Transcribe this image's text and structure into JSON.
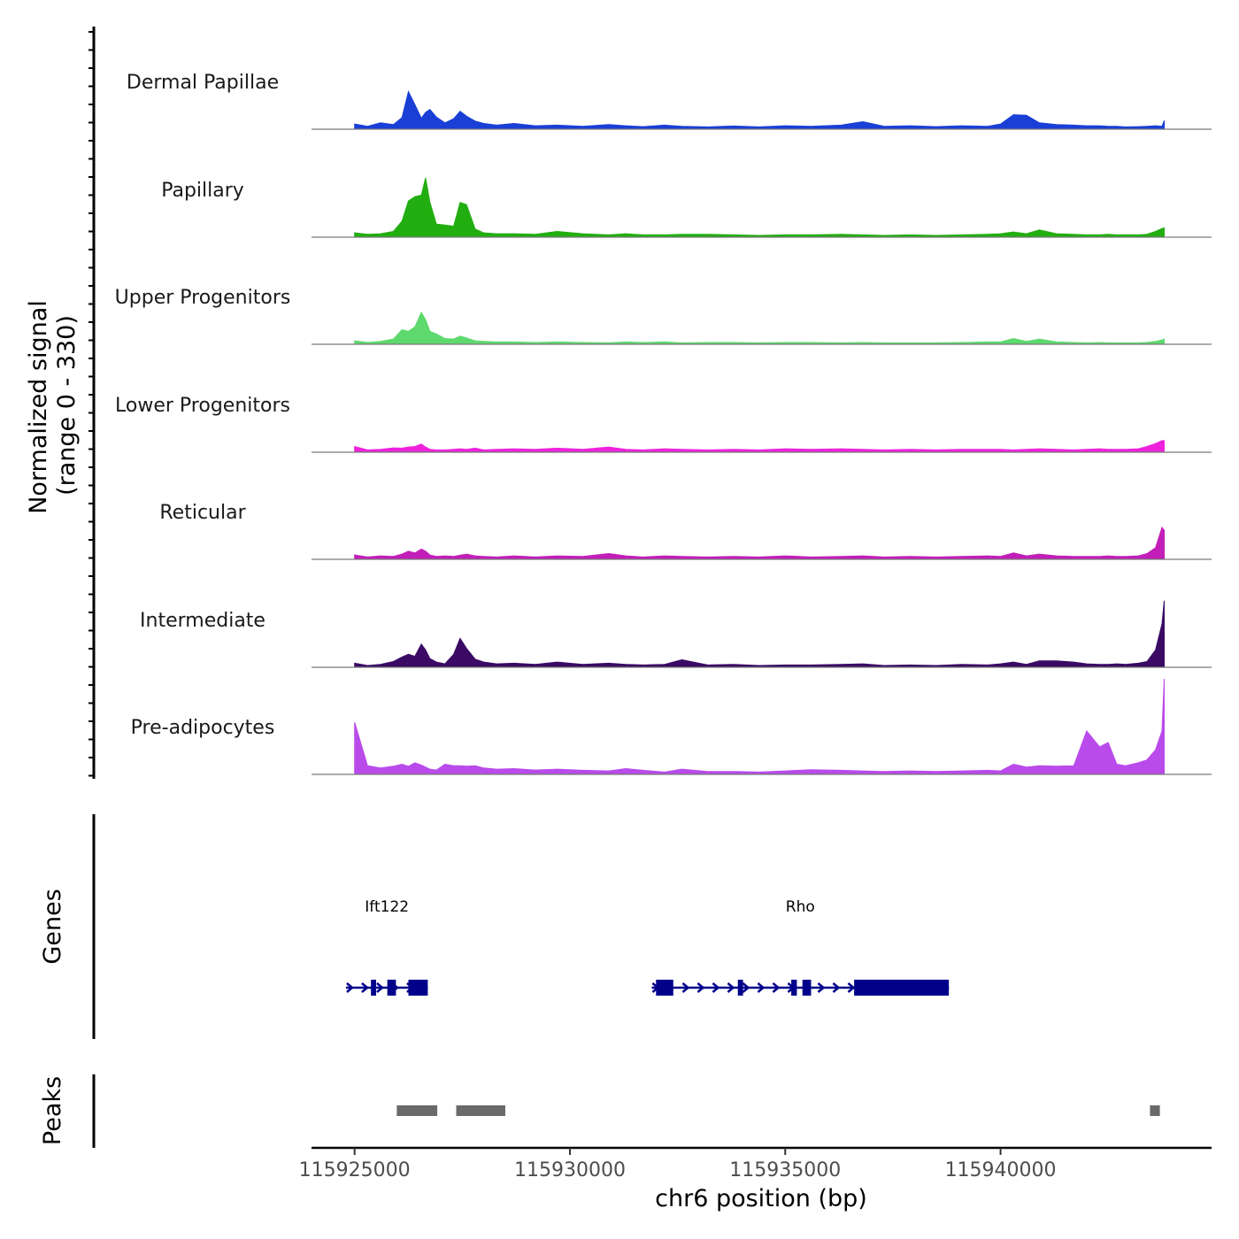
{
  "chart_data": {
    "type": "area",
    "title": "",
    "ylabel": "Normalized signal",
    "ylabel_range": "(range 0 - 330)",
    "ylim": [
      0,
      330
    ],
    "xlabel": "chr6 position (bp)",
    "xlim": [
      115924000,
      115944900
    ],
    "x_ticks": [
      115925000,
      115930000,
      115935000,
      115940000
    ],
    "x_tick_labels": [
      "115925000",
      "115930000",
      "115935000",
      "115940000"
    ],
    "positions": [
      115925000,
      115925300,
      115925600,
      115925900,
      115926100,
      115926250,
      115926400,
      115926550,
      115926650,
      115926750,
      115926900,
      115927100,
      115927300,
      115927450,
      115927600,
      115927800,
      115928000,
      115928300,
      115928700,
      115929200,
      115929700,
      115930300,
      115930900,
      115931300,
      115931700,
      115932200,
      115932600,
      115933200,
      115933800,
      115934400,
      115935000,
      115935600,
      115936300,
      115936800,
      115937300,
      115937900,
      115938500,
      115939100,
      115939700,
      115940000,
      115940300,
      115940600,
      115940900,
      115941300,
      115941700,
      115942000,
      115942300,
      115942500,
      115942700,
      115942900,
      115943200,
      115943400,
      115943600,
      115943750,
      115943800
    ],
    "series": [
      {
        "name": "Dermal Papillae",
        "color": "#1a3fd6",
        "values": [
          18,
          10,
          22,
          16,
          40,
          130,
          85,
          38,
          58,
          68,
          42,
          22,
          36,
          62,
          45,
          28,
          20,
          14,
          20,
          12,
          14,
          10,
          16,
          12,
          9,
          14,
          10,
          8,
          11,
          8,
          12,
          10,
          14,
          26,
          10,
          12,
          9,
          12,
          10,
          18,
          50,
          48,
          22,
          16,
          14,
          12,
          12,
          10,
          10,
          8,
          9,
          10,
          12,
          10,
          30
        ]
      },
      {
        "name": "Papillary",
        "color": "#22ae10",
        "values": [
          15,
          10,
          12,
          20,
          55,
          125,
          140,
          145,
          205,
          120,
          45,
          42,
          38,
          120,
          112,
          28,
          15,
          12,
          12,
          10,
          20,
          12,
          8,
          12,
          8,
          8,
          10,
          10,
          8,
          6,
          8,
          8,
          10,
          8,
          6,
          8,
          6,
          8,
          10,
          12,
          18,
          12,
          25,
          12,
          10,
          8,
          8,
          10,
          8,
          8,
          8,
          10,
          20,
          30,
          32
        ]
      },
      {
        "name": "Upper Progenitors",
        "color": "#5ed96e",
        "values": [
          12,
          6,
          10,
          18,
          50,
          45,
          60,
          110,
          85,
          45,
          35,
          20,
          18,
          28,
          22,
          12,
          10,
          8,
          8,
          6,
          8,
          6,
          5,
          8,
          6,
          8,
          5,
          6,
          6,
          5,
          6,
          6,
          5,
          6,
          5,
          5,
          5,
          6,
          8,
          8,
          20,
          10,
          18,
          8,
          6,
          5,
          6,
          5,
          5,
          5,
          5,
          6,
          10,
          15,
          18
        ]
      },
      {
        "name": "Lower Progenitors",
        "color": "#ee22dd",
        "values": [
          20,
          8,
          10,
          15,
          14,
          18,
          20,
          28,
          18,
          10,
          8,
          8,
          10,
          12,
          10,
          14,
          8,
          10,
          12,
          10,
          14,
          10,
          18,
          10,
          8,
          12,
          10,
          8,
          10,
          8,
          12,
          10,
          12,
          10,
          8,
          10,
          8,
          10,
          10,
          10,
          8,
          10,
          12,
          10,
          8,
          10,
          12,
          10,
          10,
          10,
          12,
          20,
          30,
          40,
          40
        ]
      },
      {
        "name": "Reticular",
        "color": "#c21eb8",
        "values": [
          15,
          8,
          12,
          10,
          18,
          28,
          22,
          35,
          28,
          15,
          10,
          12,
          10,
          14,
          18,
          12,
          10,
          8,
          12,
          8,
          12,
          10,
          20,
          12,
          8,
          12,
          10,
          8,
          10,
          8,
          12,
          8,
          10,
          12,
          8,
          10,
          8,
          10,
          12,
          10,
          22,
          12,
          18,
          12,
          10,
          10,
          10,
          12,
          10,
          10,
          12,
          20,
          40,
          110,
          100
        ]
      },
      {
        "name": "Intermediate",
        "color": "#3a0a64",
        "values": [
          14,
          6,
          10,
          20,
          35,
          45,
          38,
          80,
          60,
          30,
          18,
          12,
          45,
          100,
          65,
          28,
          18,
          12,
          14,
          10,
          18,
          10,
          14,
          10,
          8,
          10,
          26,
          8,
          10,
          6,
          8,
          8,
          10,
          12,
          6,
          8,
          6,
          10,
          8,
          12,
          18,
          10,
          22,
          22,
          18,
          12,
          10,
          10,
          12,
          10,
          14,
          20,
          60,
          150,
          230
        ]
      },
      {
        "name": "Pre-adipocytes",
        "color": "#b94bea",
        "values": [
          180,
          30,
          22,
          28,
          35,
          28,
          40,
          32,
          25,
          18,
          15,
          35,
          30,
          30,
          28,
          30,
          22,
          18,
          20,
          15,
          18,
          14,
          12,
          20,
          14,
          8,
          18,
          10,
          10,
          8,
          12,
          16,
          14,
          12,
          10,
          12,
          10,
          12,
          14,
          12,
          35,
          25,
          30,
          28,
          30,
          150,
          95,
          110,
          35,
          30,
          40,
          50,
          85,
          150,
          330
        ]
      }
    ],
    "genes": [
      {
        "name": "Ift122",
        "strand": "+",
        "start": 115924800,
        "end": 115926700,
        "exons": [
          [
            115925380,
            115925500
          ],
          [
            115925760,
            115925960
          ],
          [
            115926250,
            115926700
          ]
        ]
      },
      {
        "name": "Rho",
        "strand": "+",
        "start": 115931900,
        "end": 115938800,
        "exons": [
          [
            115932000,
            115932400
          ],
          [
            115933900,
            115934020
          ],
          [
            115935140,
            115935270
          ],
          [
            115935400,
            115935600
          ],
          [
            115936600,
            115938800
          ]
        ]
      }
    ],
    "peaks": [
      [
        115925980,
        115926920
      ],
      [
        115927360,
        115928500
      ],
      [
        115943470,
        115943700
      ]
    ],
    "panels": [
      "Genes",
      "Peaks"
    ]
  }
}
